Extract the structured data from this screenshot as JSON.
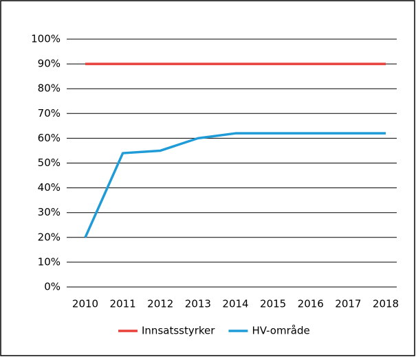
{
  "chart_data": {
    "type": "line",
    "categories": [
      "2010",
      "2011",
      "2012",
      "2013",
      "2014",
      "2015",
      "2016",
      "2017",
      "2018"
    ],
    "series": [
      {
        "name": "Innsatsstyrker",
        "color": "#e8413c",
        "values": [
          90,
          90,
          90,
          90,
          90,
          90,
          90,
          90,
          90
        ]
      },
      {
        "name": "HV-område",
        "color": "#1f9bd7",
        "values": [
          20,
          54,
          55,
          60,
          62,
          62,
          62,
          62,
          62
        ]
      }
    ],
    "ylim": [
      0,
      100
    ],
    "yticks": [
      {
        "value": 0,
        "label": "0%"
      },
      {
        "value": 10,
        "label": "10%"
      },
      {
        "value": 20,
        "label": "20%"
      },
      {
        "value": 30,
        "label": "30%"
      },
      {
        "value": 40,
        "label": "40%"
      },
      {
        "value": 50,
        "label": "50%"
      },
      {
        "value": 60,
        "label": "60%"
      },
      {
        "value": 70,
        "label": "70%"
      },
      {
        "value": 80,
        "label": "80%"
      },
      {
        "value": 90,
        "label": "90%"
      },
      {
        "value": 100,
        "label": "100%"
      }
    ],
    "grid": true,
    "legend": "bottom"
  }
}
